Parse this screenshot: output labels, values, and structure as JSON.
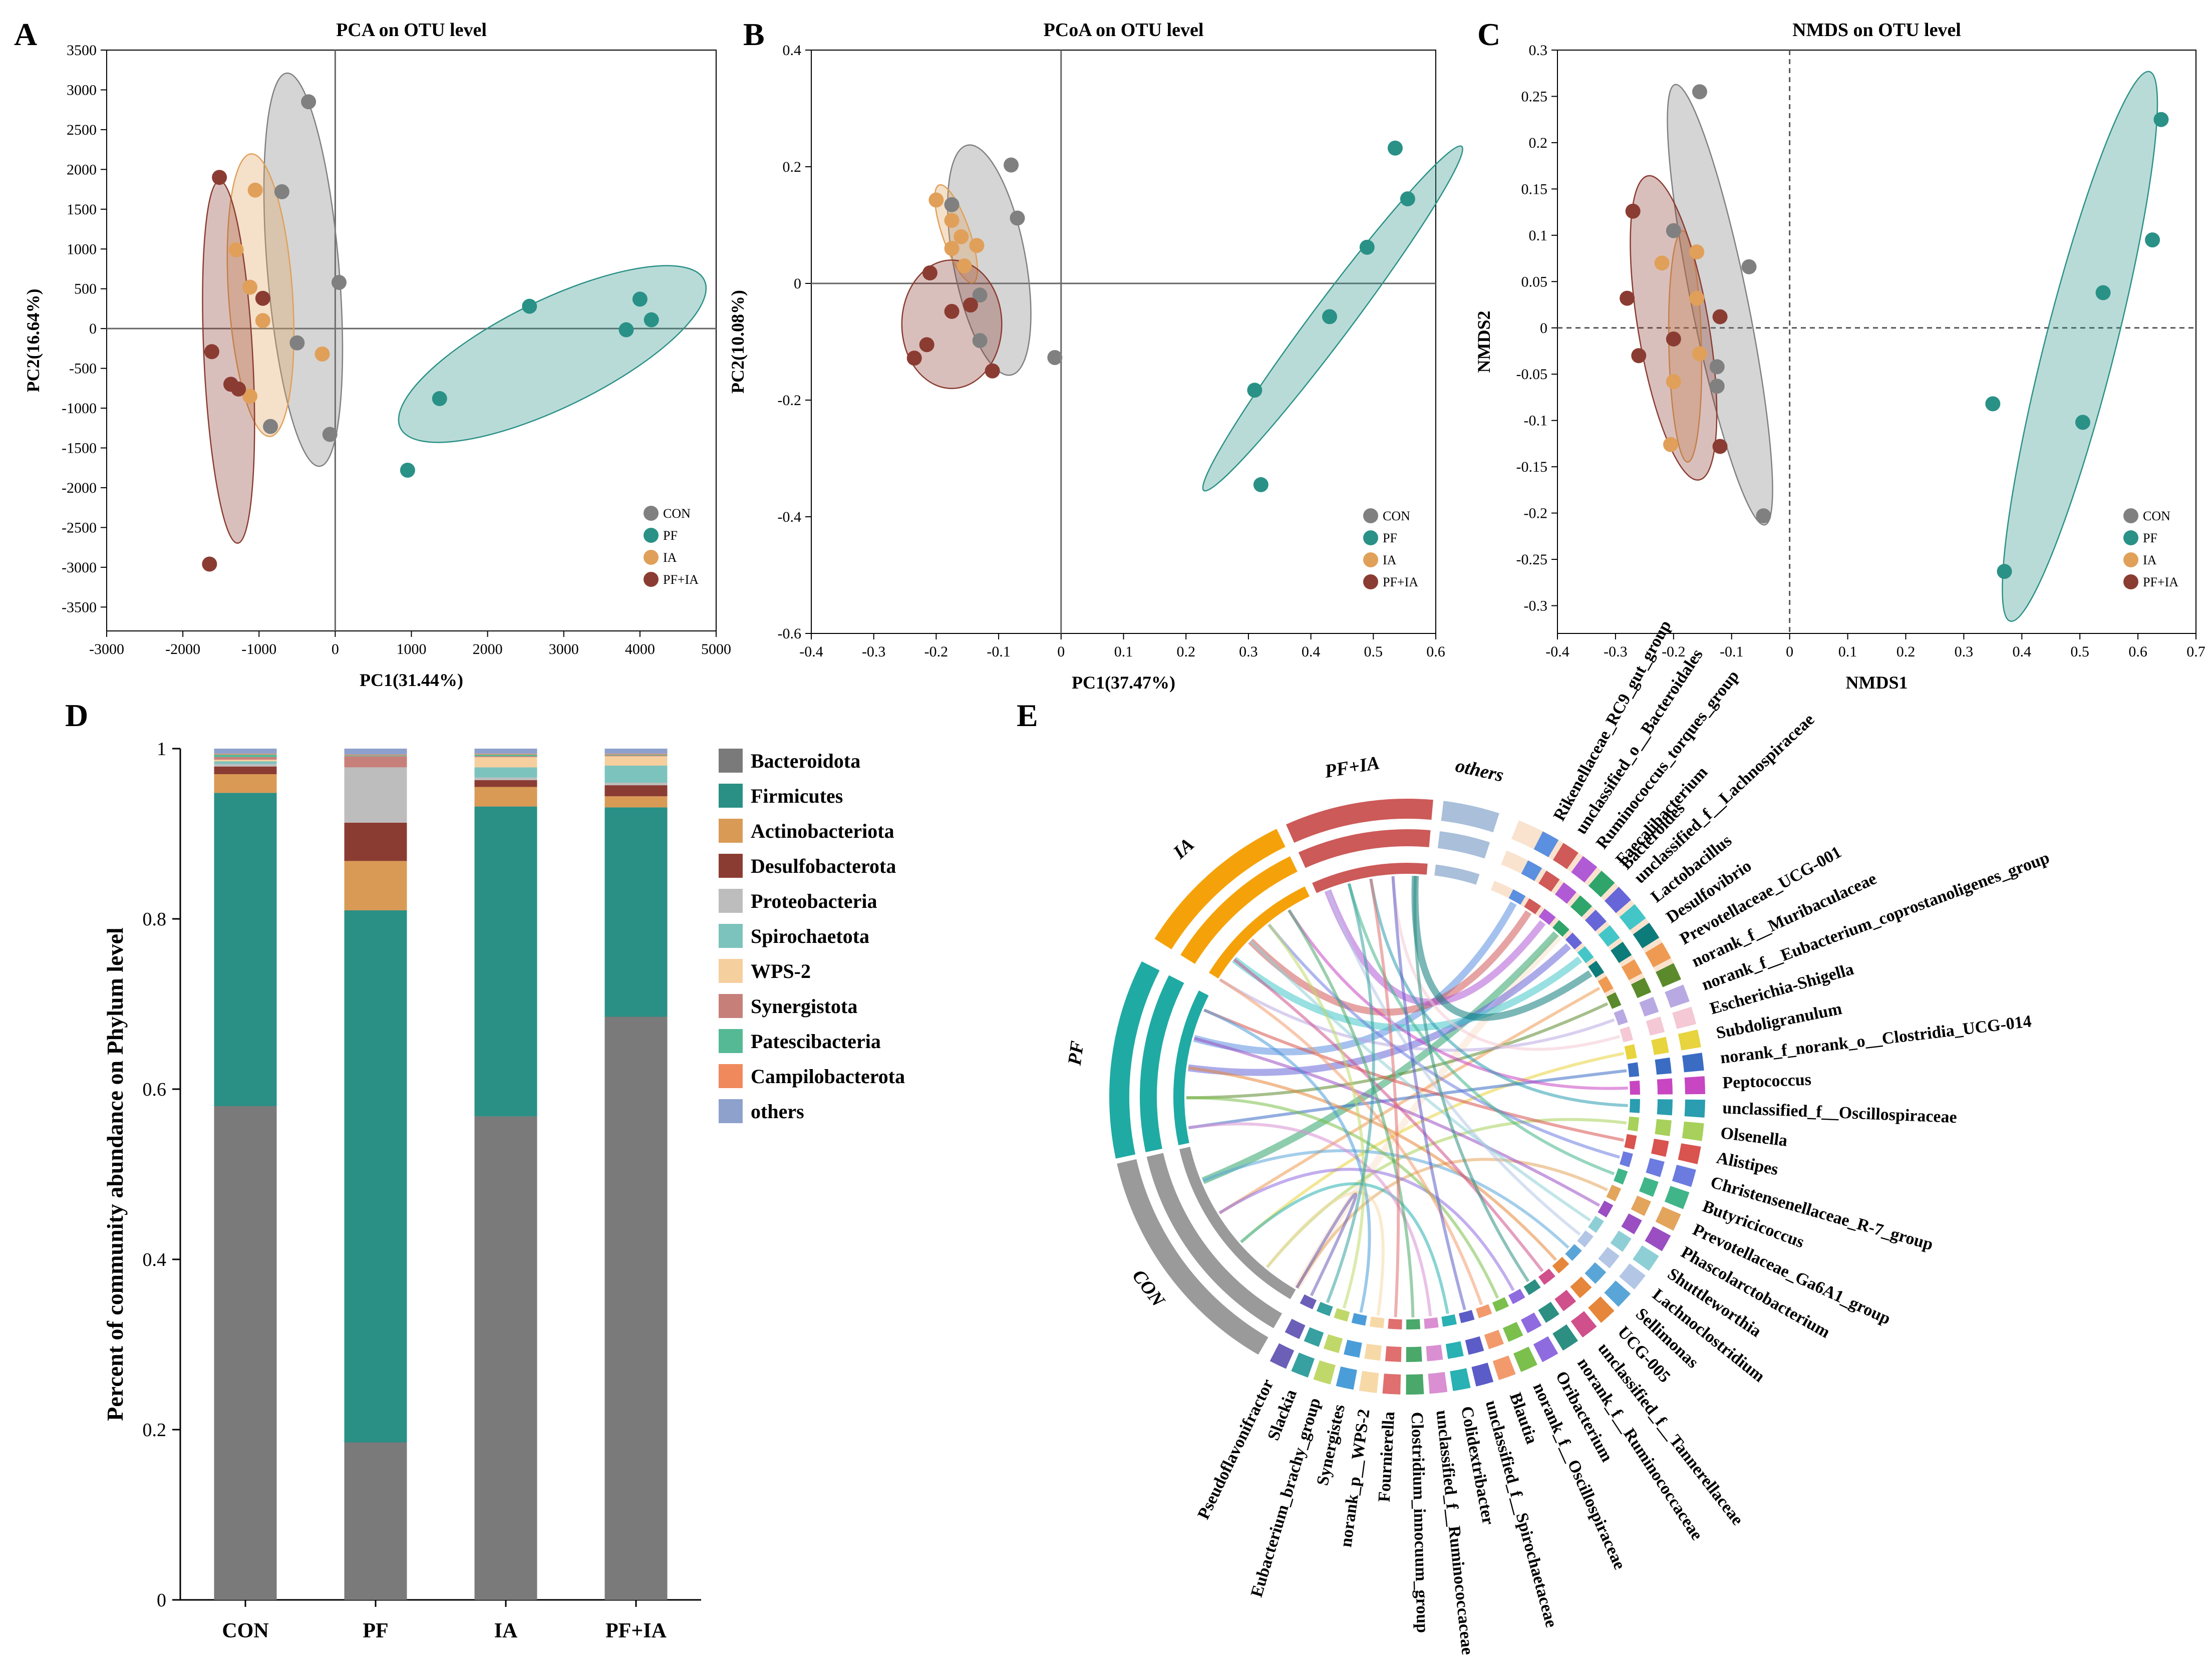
{
  "colors": {
    "CON": "#808080",
    "PF": "#2a9187",
    "IA": "#e0a05a",
    "PFIA": "#8b3c32",
    "axis": "#000000",
    "ref": "#555555"
  },
  "chart_data": [
    {
      "id": "A",
      "panel_label": "A",
      "type": "scatter",
      "title": "PCA on OTU level",
      "xlabel": "PC1(31.44%)",
      "ylabel": "PC2(16.64%)",
      "xlim": [
        -3000,
        5000
      ],
      "ylim": [
        -3800,
        3500
      ],
      "xticks": [
        -3000,
        -2000,
        -1000,
        0,
        1000,
        2000,
        3000,
        4000,
        5000
      ],
      "yticks": [
        -3500,
        -3000,
        -2500,
        -2000,
        -1500,
        -1000,
        -500,
        0,
        500,
        1000,
        1500,
        2000,
        2500,
        3000,
        3500
      ],
      "ref_lines": {
        "x": 0,
        "y": 0,
        "style": "solid"
      },
      "legend": {
        "position": "bottom-right",
        "entries": [
          "CON",
          "PF",
          "IA",
          "PF+IA"
        ]
      },
      "series": [
        {
          "name": "CON",
          "color": "#808080",
          "points": [
            [
              -350,
              2850
            ],
            [
              -700,
              1720
            ],
            [
              50,
              580
            ],
            [
              -500,
              -180
            ],
            [
              -850,
              -1230
            ],
            [
              -70,
              -1330
            ]
          ],
          "ellipse": {
            "cx": -420,
            "cy": 740,
            "rx": 2480,
            "ry": 470,
            "angle": -85
          }
        },
        {
          "name": "PF",
          "color": "#2a9187",
          "points": [
            [
              2550,
              280
            ],
            [
              4000,
              370
            ],
            [
              4150,
              110
            ],
            [
              3820,
              -15
            ],
            [
              1370,
              -880
            ],
            [
              950,
              -1780
            ]
          ],
          "ellipse": {
            "cx": 2850,
            "cy": -320,
            "rx": 2200,
            "ry": 680,
            "angle": 25
          }
        },
        {
          "name": "IA",
          "color": "#e0a05a",
          "points": [
            [
              -1050,
              1740
            ],
            [
              -1300,
              990
            ],
            [
              -1120,
              520
            ],
            [
              -950,
              100
            ],
            [
              -170,
              -320
            ],
            [
              -1120,
              -850
            ]
          ],
          "ellipse": {
            "cx": -980,
            "cy": 420,
            "rx": 1780,
            "ry": 420,
            "angle": -86
          }
        },
        {
          "name": "PF+IA",
          "color": "#8b3c32",
          "points": [
            [
              -1520,
              1900
            ],
            [
              -950,
              380
            ],
            [
              -1620,
              -290
            ],
            [
              -1370,
              -700
            ],
            [
              -1270,
              -760
            ],
            [
              -1650,
              -2960
            ]
          ],
          "ellipse": {
            "cx": -1400,
            "cy": -420,
            "rx": 2280,
            "ry": 320,
            "angle": -87
          }
        }
      ]
    },
    {
      "id": "B",
      "panel_label": "B",
      "type": "scatter",
      "title": "PCoA on OTU level",
      "xlabel": "PC1(37.47%)",
      "ylabel": "PC2(10.08%)",
      "xlim": [
        -0.4,
        0.6
      ],
      "ylim": [
        -0.6,
        0.4
      ],
      "xticks": [
        -0.4,
        -0.3,
        -0.2,
        -0.1,
        0,
        0.1,
        0.2,
        0.3,
        0.4,
        0.5,
        0.6
      ],
      "yticks": [
        -0.6,
        -0.4,
        -0.2,
        0,
        0.2,
        0.4
      ],
      "ref_lines": {
        "x": 0,
        "y": 0,
        "style": "solid"
      },
      "legend": {
        "position": "bottom-right",
        "entries": [
          "CON",
          "PF",
          "IA",
          "PF+IA"
        ]
      },
      "series": [
        {
          "name": "CON",
          "color": "#808080",
          "points": [
            [
              -0.08,
              0.203
            ],
            [
              -0.07,
              0.112
            ],
            [
              -0.175,
              0.135
            ],
            [
              -0.13,
              -0.02
            ],
            [
              -0.13,
              -0.098
            ],
            [
              -0.01,
              -0.127
            ]
          ],
          "ellipse": {
            "cx": -0.115,
            "cy": 0.04,
            "rx": 0.2,
            "ry": 0.058,
            "angle": -80
          }
        },
        {
          "name": "PF",
          "color": "#2a9187",
          "points": [
            [
              0.535,
              0.232
            ],
            [
              0.555,
              0.145
            ],
            [
              0.49,
              0.062
            ],
            [
              0.43,
              -0.057
            ],
            [
              0.31,
              -0.183
            ],
            [
              0.32,
              -0.345
            ]
          ],
          "ellipse": {
            "cx": 0.435,
            "cy": -0.06,
            "rx": 0.36,
            "ry": 0.032,
            "angle": 55
          }
        },
        {
          "name": "IA",
          "color": "#e0a05a",
          "points": [
            [
              -0.2,
              0.143
            ],
            [
              -0.175,
              0.108
            ],
            [
              -0.16,
              0.08
            ],
            [
              -0.175,
              0.06
            ],
            [
              -0.155,
              0.03
            ],
            [
              -0.135,
              0.065
            ]
          ],
          "ellipse": {
            "cx": -0.168,
            "cy": 0.085,
            "rx": 0.088,
            "ry": 0.022,
            "angle": -72
          }
        },
        {
          "name": "PF+IA",
          "color": "#8b3c32",
          "points": [
            [
              -0.21,
              0.018
            ],
            [
              -0.145,
              -0.037
            ],
            [
              -0.175,
              -0.048
            ],
            [
              -0.215,
              -0.105
            ],
            [
              -0.235,
              -0.128
            ],
            [
              -0.11,
              -0.15
            ]
          ],
          "ellipse": {
            "cx": -0.175,
            "cy": -0.07,
            "rx": 0.08,
            "ry": 0.11,
            "angle": 0
          }
        }
      ]
    },
    {
      "id": "C",
      "panel_label": "C",
      "type": "scatter",
      "title": "NMDS on OTU level",
      "xlabel": "NMDS1",
      "ylabel": "NMDS2",
      "xlim": [
        -0.4,
        0.7
      ],
      "ylim": [
        -0.33,
        0.3
      ],
      "xticks": [
        -0.4,
        -0.3,
        -0.2,
        -0.1,
        0,
        0.1,
        0.2,
        0.3,
        0.4,
        0.5,
        0.6,
        0.7
      ],
      "yticks": [
        -0.3,
        -0.25,
        -0.2,
        -0.15,
        -0.1,
        -0.05,
        0,
        0.05,
        0.1,
        0.15,
        0.2,
        0.25,
        0.3
      ],
      "ref_lines": {
        "x": 0,
        "y": 0,
        "style": "dashed"
      },
      "legend": {
        "position": "bottom-right",
        "entries": [
          "CON",
          "PF",
          "IA",
          "PF+IA"
        ]
      },
      "series": [
        {
          "name": "CON",
          "color": "#808080",
          "points": [
            [
              -0.155,
              0.255
            ],
            [
              -0.2,
              0.105
            ],
            [
              -0.07,
              0.066
            ],
            [
              -0.125,
              -0.042
            ],
            [
              -0.125,
              -0.063
            ],
            [
              -0.045,
              -0.203
            ]
          ],
          "ellipse": {
            "cx": -0.12,
            "cy": 0.025,
            "rx": 0.25,
            "ry": 0.045,
            "angle": -72
          }
        },
        {
          "name": "PF",
          "color": "#2a9187",
          "points": [
            [
              0.64,
              0.225
            ],
            [
              0.625,
              0.095
            ],
            [
              0.54,
              0.038
            ],
            [
              0.35,
              -0.082
            ],
            [
              0.505,
              -0.102
            ],
            [
              0.37,
              -0.263
            ]
          ],
          "ellipse": {
            "cx": 0.5,
            "cy": -0.02,
            "rx": 0.32,
            "ry": 0.055,
            "angle": 68
          }
        },
        {
          "name": "IA",
          "color": "#e0a05a",
          "points": [
            [
              -0.16,
              0.082
            ],
            [
              -0.22,
              0.07
            ],
            [
              -0.16,
              0.032
            ],
            [
              -0.155,
              -0.028
            ],
            [
              -0.2,
              -0.058
            ],
            [
              -0.205,
              -0.126
            ]
          ],
          "ellipse": {
            "cx": -0.18,
            "cy": -0.02,
            "rx": 0.125,
            "ry": 0.028,
            "angle": -88
          }
        },
        {
          "name": "PF+IA",
          "color": "#8b3c32",
          "points": [
            [
              -0.27,
              0.126
            ],
            [
              -0.28,
              0.032
            ],
            [
              -0.2,
              -0.012
            ],
            [
              -0.26,
              -0.03
            ],
            [
              -0.12,
              0.012
            ],
            [
              -0.12,
              -0.128
            ]
          ],
          "ellipse": {
            "cx": -0.2,
            "cy": 0.0,
            "rx": 0.17,
            "ry": 0.058,
            "angle": -75
          }
        }
      ]
    },
    {
      "id": "D",
      "panel_label": "D",
      "type": "bar",
      "stacked": true,
      "ylabel": "Percent of community abundance on Phylum level",
      "ylim": [
        0,
        1
      ],
      "yticks": [
        0,
        0.2,
        0.4,
        0.6,
        0.8,
        1
      ],
      "categories": [
        "CON",
        "PF",
        "IA",
        "PF+IA"
      ],
      "legend": {
        "position": "right"
      },
      "series": [
        {
          "name": "Bacteroidota",
          "color": "#7a7a7a",
          "values": [
            0.58,
            0.185,
            0.568,
            0.685
          ]
        },
        {
          "name": "Firmicutes",
          "color": "#2a8f85",
          "values": [
            0.368,
            0.625,
            0.364,
            0.246
          ]
        },
        {
          "name": "Actinobacteriota",
          "color": "#d99a55",
          "values": [
            0.022,
            0.058,
            0.023,
            0.013
          ]
        },
        {
          "name": "Desulfobacterota",
          "color": "#8b3c32",
          "values": [
            0.009,
            0.045,
            0.008,
            0.013
          ]
        },
        {
          "name": "Proteobacteria",
          "color": "#bdbdbd",
          "values": [
            0.003,
            0.065,
            0.003,
            0.003
          ]
        },
        {
          "name": "Spirochaetota",
          "color": "#7dc3bd",
          "values": [
            0.003,
            0.0,
            0.012,
            0.02
          ]
        },
        {
          "name": "WPS-2",
          "color": "#f6cf9e",
          "values": [
            0.002,
            0.0,
            0.012,
            0.011
          ]
        },
        {
          "name": "Synergistota",
          "color": "#c77f7a",
          "values": [
            0.003,
            0.013,
            0.001,
            0.001
          ]
        },
        {
          "name": "Patescibacteria",
          "color": "#56b996",
          "values": [
            0.003,
            0.001,
            0.002,
            0.001
          ]
        },
        {
          "name": "Campilobacterota",
          "color": "#f08a5d",
          "values": [
            0.001,
            0.001,
            0.001,
            0.001
          ]
        },
        {
          "name": "others",
          "color": "#8ea1cd",
          "values": [
            0.006,
            0.007,
            0.006,
            0.006
          ]
        }
      ]
    },
    {
      "id": "E",
      "panel_label": "E",
      "type": "chord",
      "groups": [
        {
          "name": "CON",
          "color": "#9a9a9a"
        },
        {
          "name": "PF",
          "color": "#20aaa4"
        },
        {
          "name": "IA",
          "color": "#f5a20a"
        },
        {
          "name": "PF+IA",
          "color": "#cc5a58"
        },
        {
          "name": "others",
          "color": "#a9bfda"
        }
      ],
      "genera": [
        {
          "name": "Bacteroides",
          "color": "#f9e3cf"
        },
        {
          "name": "Rikenellaceae_RC9_gut_group",
          "color": "#5b8fe0"
        },
        {
          "name": "unclassified_o__Bacteroidales",
          "color": "#cf5a58"
        },
        {
          "name": "Ruminococcus_torques_group",
          "color": "#b15ad6"
        },
        {
          "name": "Faecalibacterium",
          "color": "#2fa46b"
        },
        {
          "name": "unclassified_f__Lachnospiraceae",
          "color": "#6766d8"
        },
        {
          "name": "Lactobacillus",
          "color": "#44c6c8"
        },
        {
          "name": "Desulfovibrio",
          "color": "#0e7b7b"
        },
        {
          "name": "Prevotellaceae_UCG-001",
          "color": "#ef9a52"
        },
        {
          "name": "norank_f__Muribaculaceae",
          "color": "#5b8a2c"
        },
        {
          "name": "norank_f__Eubacterium_coprostanoligenes_group",
          "color": "#b9a9e2"
        },
        {
          "name": "Escherichia-Shigella",
          "color": "#f4c8d4"
        },
        {
          "name": "Subdoligranulum",
          "color": "#e7d43e"
        },
        {
          "name": "norank_f_norank_o__Clostridia_UCG-014",
          "color": "#3b6cc4"
        },
        {
          "name": "Peptococcus",
          "color": "#c846c1"
        },
        {
          "name": "unclassified_f__Oscillospiraceae",
          "color": "#2a9db0"
        },
        {
          "name": "Olsenella",
          "color": "#a7d15a"
        },
        {
          "name": "Alistipes",
          "color": "#d9534f"
        },
        {
          "name": "Christensenellaceae_R-7_group",
          "color": "#6b7be0"
        },
        {
          "name": "Butyricicoccus",
          "color": "#41b58a"
        },
        {
          "name": "Prevotellaceae_Ga6A1_group",
          "color": "#e3a45c"
        },
        {
          "name": "Phascolarctobacterium",
          "color": "#9a4ec2"
        },
        {
          "name": "Shuttleworthia",
          "color": "#8ecfd6"
        },
        {
          "name": "Lachnoclostridium",
          "color": "#b3c6e6"
        },
        {
          "name": "Sellimonas",
          "color": "#5aa5d8"
        },
        {
          "name": "UCG-005",
          "color": "#e6863a"
        },
        {
          "name": "unclassified_f__Tannerellaceae",
          "color": "#d0508b"
        },
        {
          "name": "norank_f__Ruminococcaceae",
          "color": "#2d8f82"
        },
        {
          "name": "Oribacterium",
          "color": "#8f6be0"
        },
        {
          "name": "norank_f__Oscillospiraceae",
          "color": "#7bbf4c"
        },
        {
          "name": "Blautia",
          "color": "#f29a6c"
        },
        {
          "name": "unclassified_f__Spirochaetaceae",
          "color": "#5c5cc8"
        },
        {
          "name": "Colidextribacter",
          "color": "#29b1b3"
        },
        {
          "name": "unclassified_f__Ruminococcaceae",
          "color": "#d98fd1"
        },
        {
          "name": "Clostridium_innocuum_group",
          "color": "#4aa86a"
        },
        {
          "name": "Fournierella",
          "color": "#e06f6f"
        },
        {
          "name": "norank_p__WPS-2",
          "color": "#f7d9a8"
        },
        {
          "name": "Synergistes",
          "color": "#4b9dd9"
        },
        {
          "name": "Eubacterium_brachy_group",
          "color": "#c0d86a"
        },
        {
          "name": "Slackia",
          "color": "#37a0a0"
        },
        {
          "name": "Pseudoflavonifractor",
          "color": "#6b5fb8"
        }
      ]
    }
  ]
}
